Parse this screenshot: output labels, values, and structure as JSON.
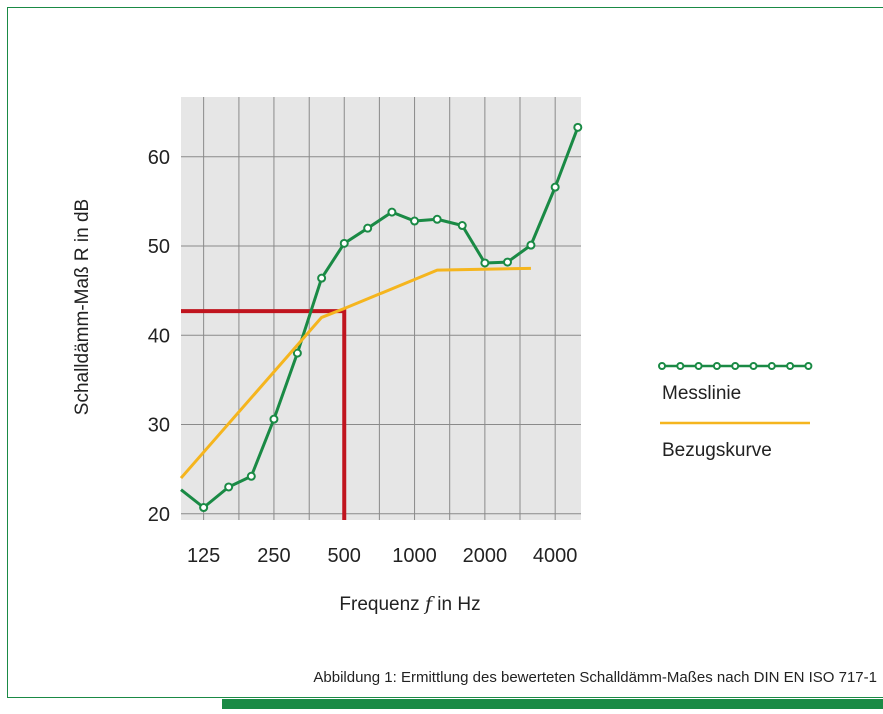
{
  "chart_data": {
    "type": "line",
    "y_label": "Schalldämm-Maß R in dB",
    "x_label_parts": [
      "Frequenz",
      "f",
      "in Hz"
    ],
    "caption": "Abbildung 1: Ermittlung des bewerteten Schalldämm-Maßes nach DIN EN ISO 717-1",
    "log_x": true,
    "xlim": [
      100,
      5160
    ],
    "xticks": [
      125,
      250,
      500,
      1000,
      2000,
      4000
    ],
    "xgrid": [
      125,
      177,
      250,
      354,
      500,
      707,
      1000,
      1414,
      2000,
      2828,
      4000
    ],
    "ylim": [
      19.3,
      66.7
    ],
    "yticks": [
      20,
      30,
      40,
      50,
      60
    ],
    "grid": true,
    "series": [
      {
        "name": "Messlinie",
        "color": "#1a8a45",
        "markers": true,
        "x": [
          100,
          125,
          160,
          200,
          250,
          315,
          400,
          500,
          630,
          800,
          1000,
          1250,
          1600,
          2000,
          2500,
          3150,
          4000,
          5000
        ],
        "values": [
          22.7,
          20.7,
          23,
          24.2,
          30.6,
          38,
          46.4,
          50.3,
          52,
          53.8,
          52.8,
          53,
          52.3,
          48.1,
          48.2,
          50.1,
          56.6,
          63.3
        ]
      },
      {
        "name": "Bezugskurve",
        "color": "#f5b51e",
        "markers": false,
        "x": [
          100,
          400,
          500,
          1250,
          3150
        ],
        "values": [
          24,
          42,
          43,
          47.3,
          47.5
        ]
      }
    ],
    "reading": {
      "frequency": 500,
      "value": 42.7,
      "color": "#c0141e"
    }
  }
}
